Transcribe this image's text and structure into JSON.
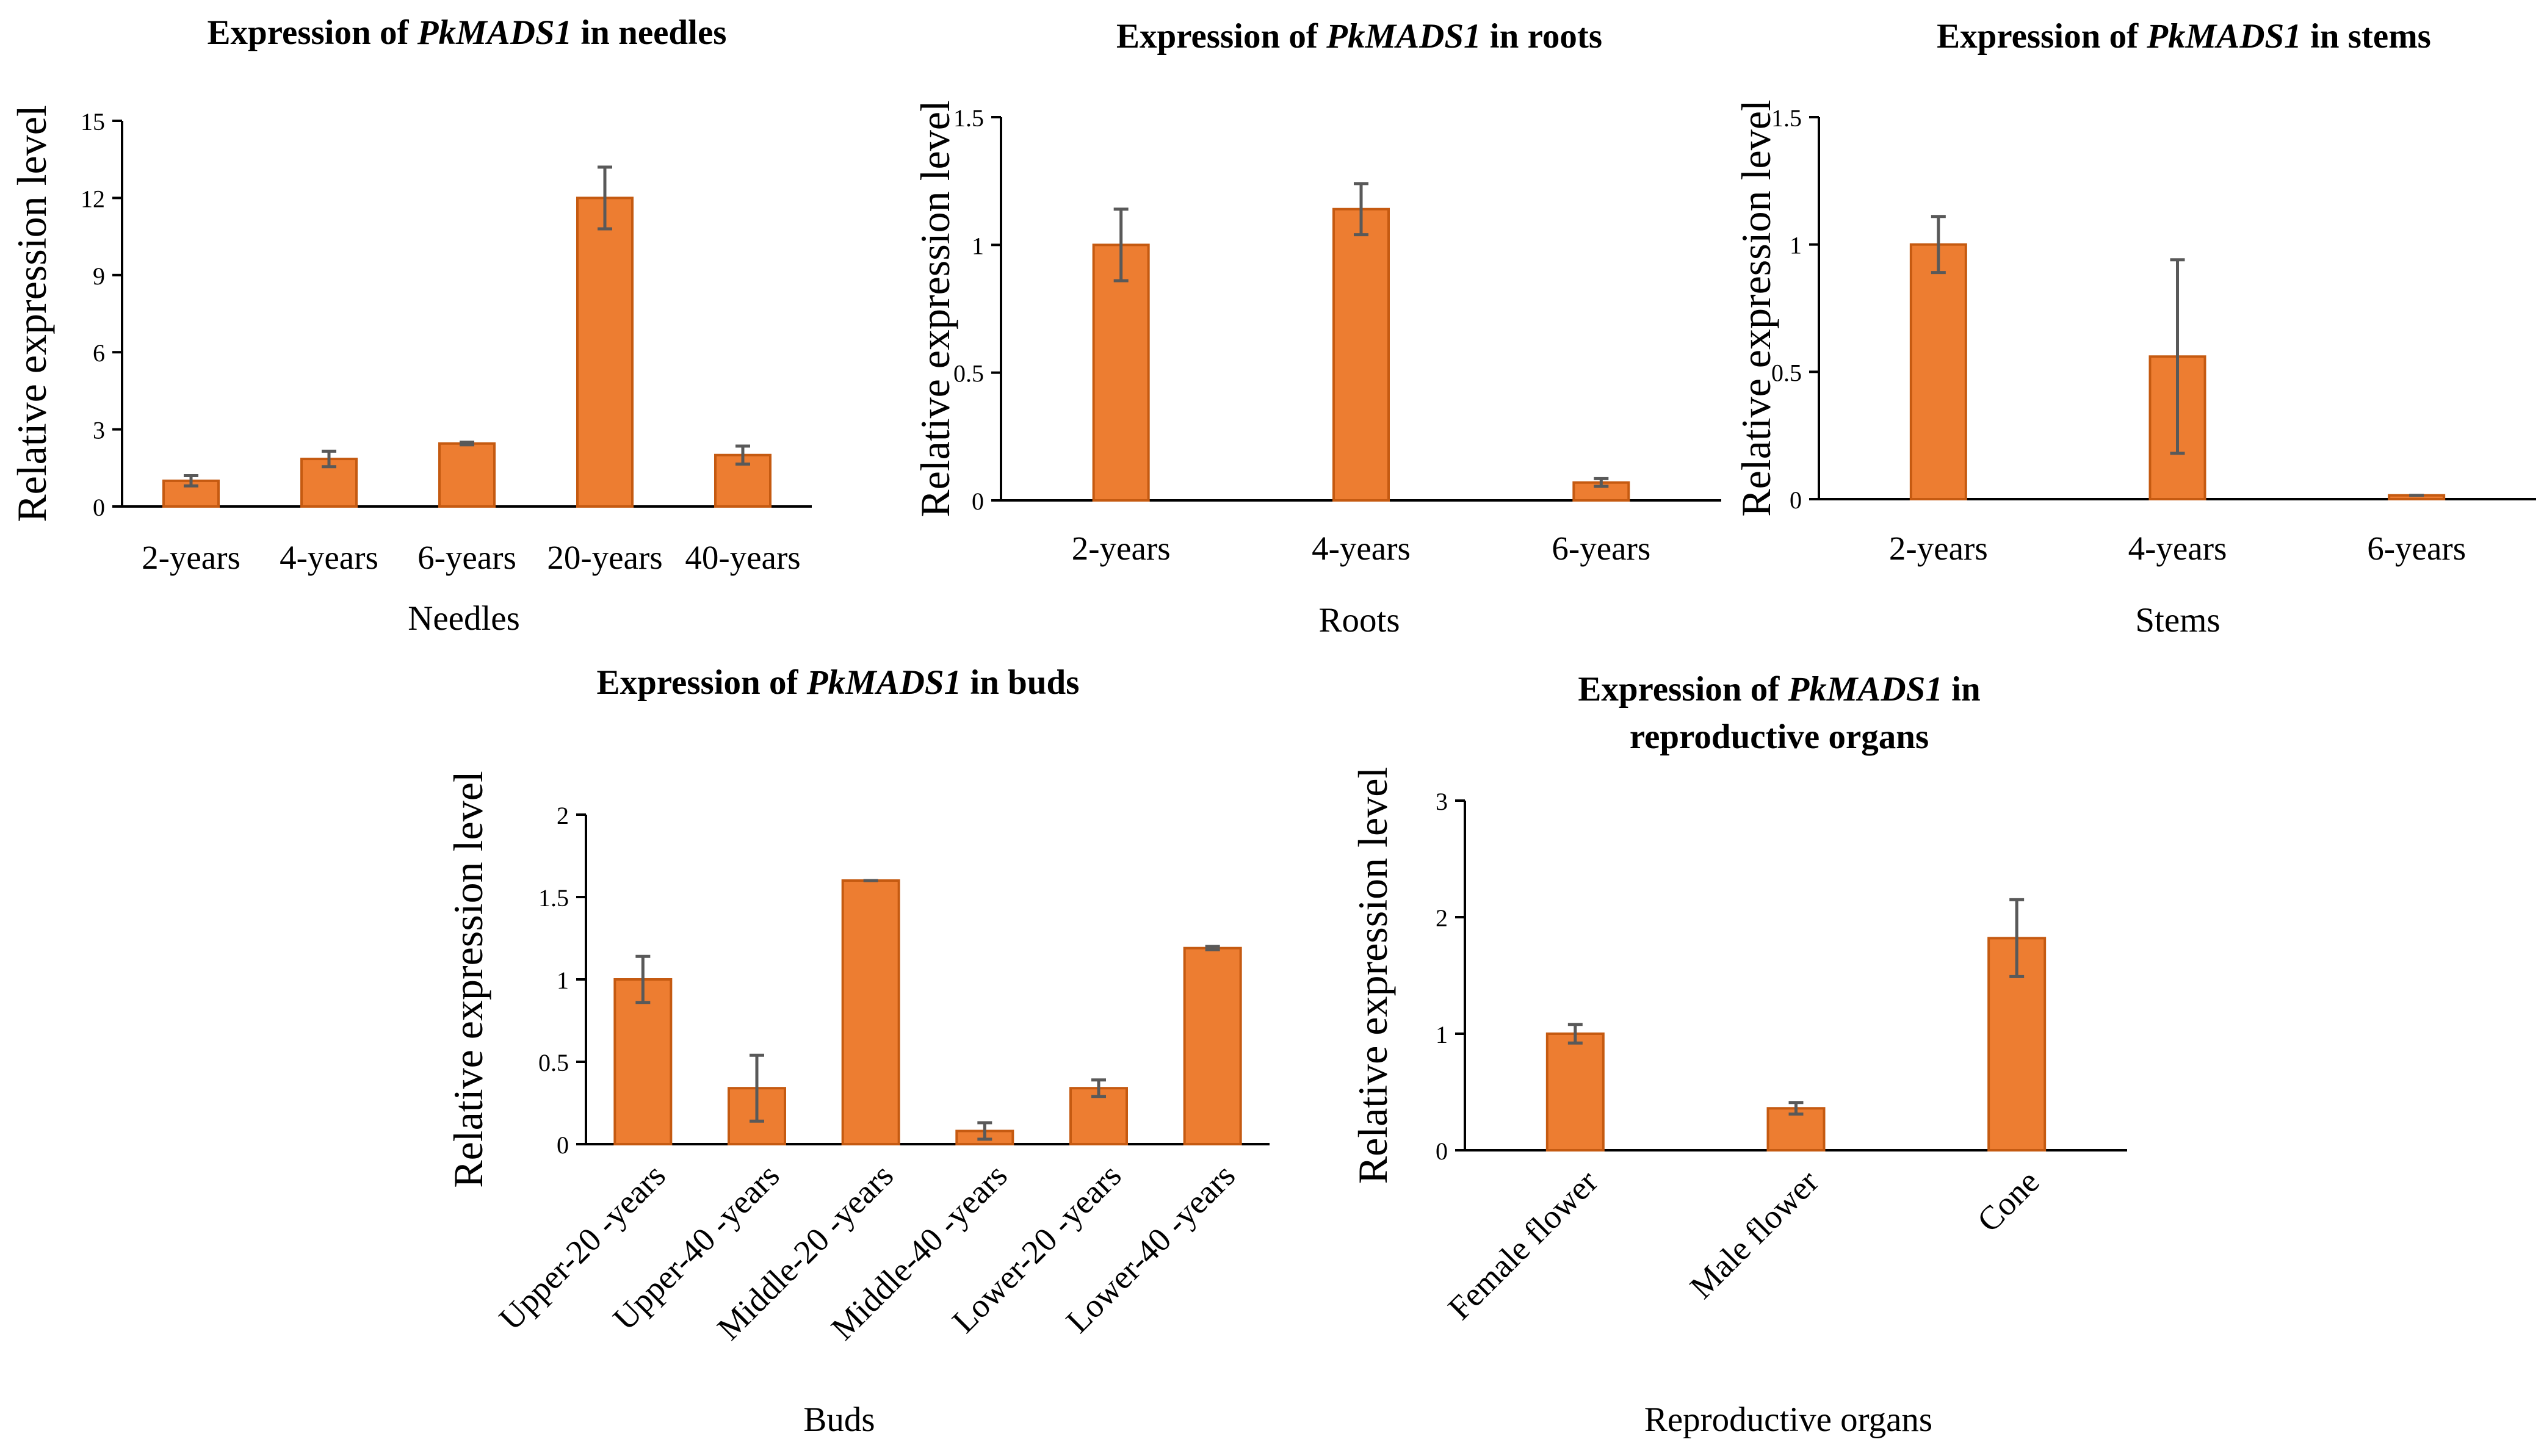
{
  "style": {
    "bar_fill": "#ED7D31",
    "bar_stroke": "#C55A11",
    "error_bar_color": "#595959",
    "axis_color": "#000000"
  },
  "chart_data": [
    {
      "id": "needles",
      "type": "bar",
      "title_prefix": "Expression of ",
      "gene": "PkMADS1",
      "title_suffix": " in needles",
      "title_line2": "",
      "xlabel": "Needles",
      "ylabel": "Relative expression level",
      "ylim": [
        0,
        15
      ],
      "yticks": [
        0,
        3,
        6,
        9,
        12,
        15
      ],
      "ytick_labels": [
        "0",
        "3",
        "6",
        "9",
        "12",
        "15"
      ],
      "categories": [
        "2-years",
        "4-years",
        "6-years",
        "20-years",
        "40-years"
      ],
      "values": [
        1.0,
        1.85,
        2.45,
        12.0,
        2.0
      ],
      "errors": [
        0.2,
        0.3,
        0.05,
        1.2,
        0.35
      ],
      "rotate_labels": false
    },
    {
      "id": "roots",
      "type": "bar",
      "title_prefix": "Expression of ",
      "gene": "PkMADS1",
      "title_suffix": " in roots",
      "title_line2": "",
      "xlabel": "Roots",
      "ylabel": "Relative expression level",
      "ylim": [
        0,
        1.5
      ],
      "yticks": [
        0,
        0.5,
        1,
        1.5
      ],
      "ytick_labels": [
        "0",
        "0.5",
        "1",
        "1.5"
      ],
      "categories": [
        "2-years",
        "4-years",
        "6-years"
      ],
      "values": [
        1.0,
        1.14,
        0.07
      ],
      "errors": [
        0.14,
        0.1,
        0.015
      ],
      "rotate_labels": false
    },
    {
      "id": "stems",
      "type": "bar",
      "title_prefix": "Expression of ",
      "gene": "PkMADS1",
      "title_suffix": " in stems",
      "title_line2": "",
      "xlabel": "Stems",
      "ylabel": "Relative expression level",
      "ylim": [
        0,
        1.5
      ],
      "yticks": [
        0,
        0.5,
        1,
        1.5
      ],
      "ytick_labels": [
        "0",
        "0.5",
        "1",
        "1.5"
      ],
      "categories": [
        "2-years",
        "4-years",
        "6-years"
      ],
      "values": [
        1.0,
        0.56,
        0.015
      ],
      "errors": [
        0.11,
        0.38,
        0.0
      ],
      "rotate_labels": false
    },
    {
      "id": "buds",
      "type": "bar",
      "title_prefix": "Expression of ",
      "gene": "PkMADS1",
      "title_suffix": " in buds",
      "title_line2": "",
      "xlabel": "Buds",
      "ylabel": "Relative expression level",
      "ylim": [
        0,
        2
      ],
      "yticks": [
        0,
        0.5,
        1,
        1.5,
        2
      ],
      "ytick_labels": [
        "0",
        "0.5",
        "1",
        "1.5",
        "2"
      ],
      "categories": [
        "Upper-20 -years",
        "Upper-40 -years",
        "Middle-20 -years",
        "Middle-40 -years",
        "Lower-20 -years",
        "Lower-40 -years"
      ],
      "values": [
        1.0,
        0.34,
        1.6,
        0.08,
        0.34,
        1.19
      ],
      "errors": [
        0.14,
        0.2,
        0.0,
        0.05,
        0.05,
        0.01
      ],
      "rotate_labels": true
    },
    {
      "id": "reproductive",
      "type": "bar",
      "title_prefix": "Expression of ",
      "gene": "PkMADS1",
      "title_suffix": " in",
      "title_line2": "reproductive organs",
      "xlabel": "Reproductive organs",
      "ylabel": "Relative expression level",
      "ylim": [
        0,
        3
      ],
      "yticks": [
        0,
        1,
        2,
        3
      ],
      "ytick_labels": [
        "0",
        "1",
        "2",
        "3"
      ],
      "categories": [
        "Female flower",
        "Male flower",
        "Cone"
      ],
      "values": [
        1.0,
        0.36,
        1.82
      ],
      "errors": [
        0.08,
        0.05,
        0.33
      ],
      "rotate_labels": true
    }
  ]
}
